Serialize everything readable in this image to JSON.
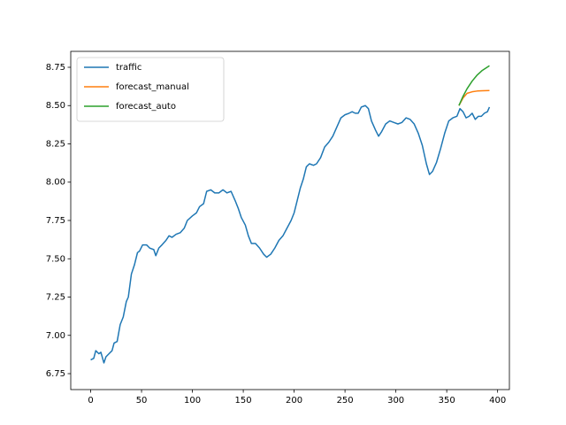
{
  "chart_data": {
    "type": "line",
    "xlim": [
      -19.6,
      411.6
    ],
    "ylim": [
      6.646,
      8.854
    ],
    "xticks": [
      0,
      50,
      100,
      150,
      200,
      250,
      300,
      350,
      400
    ],
    "yticks": [
      6.75,
      {
        "value": 7.0,
        "label": "7.00"
      },
      7.25,
      {
        "value": 7.5,
        "label": "7.50"
      },
      7.75,
      {
        "value": 8.0,
        "label": "8.00"
      },
      8.25,
      {
        "value": 8.5,
        "label": "8.50"
      },
      8.75
    ],
    "legend": "upper-left",
    "series": [
      {
        "name": "traffic",
        "color": "#1f77b4",
        "x": [
          0,
          3,
          5,
          8,
          10,
          13,
          15,
          18,
          21,
          23,
          26,
          29,
          32,
          35,
          37,
          40,
          43,
          46,
          48,
          51,
          55,
          58,
          62,
          64,
          67,
          70,
          74,
          77,
          80,
          84,
          88,
          92,
          95,
          100,
          104,
          107,
          111,
          114,
          118,
          122,
          126,
          130,
          134,
          138,
          142,
          145,
          148,
          152,
          155,
          158,
          162,
          166,
          170,
          173,
          177,
          181,
          185,
          189,
          193,
          197,
          200,
          203,
          206,
          209,
          212,
          215,
          219,
          222,
          226,
          230,
          234,
          238,
          242,
          246,
          250,
          254,
          257,
          260,
          263,
          266,
          270,
          273,
          276,
          280,
          283,
          286,
          290,
          294,
          298,
          302,
          306,
          310,
          314,
          318,
          322,
          326,
          330,
          333,
          336,
          340,
          344,
          348,
          352,
          356,
          360,
          363,
          366,
          369,
          372,
          375,
          378,
          381,
          384,
          387,
          390,
          392
        ],
        "values": [
          6.84,
          6.85,
          6.9,
          6.88,
          6.89,
          6.82,
          6.86,
          6.88,
          6.9,
          6.95,
          6.96,
          7.07,
          7.12,
          7.22,
          7.25,
          7.4,
          7.46,
          7.54,
          7.55,
          7.59,
          7.59,
          7.57,
          7.56,
          7.52,
          7.57,
          7.59,
          7.62,
          7.65,
          7.64,
          7.66,
          7.67,
          7.7,
          7.75,
          7.78,
          7.8,
          7.84,
          7.86,
          7.94,
          7.95,
          7.93,
          7.93,
          7.95,
          7.93,
          7.94,
          7.88,
          7.83,
          7.77,
          7.72,
          7.65,
          7.6,
          7.6,
          7.57,
          7.53,
          7.51,
          7.53,
          7.57,
          7.62,
          7.65,
          7.7,
          7.75,
          7.8,
          7.88,
          7.96,
          8.02,
          8.1,
          8.12,
          8.11,
          8.12,
          8.16,
          8.23,
          8.26,
          8.3,
          8.36,
          8.42,
          8.44,
          8.45,
          8.46,
          8.45,
          8.45,
          8.49,
          8.5,
          8.48,
          8.4,
          8.34,
          8.3,
          8.33,
          8.38,
          8.4,
          8.39,
          8.38,
          8.39,
          8.42,
          8.41,
          8.38,
          8.32,
          8.24,
          8.12,
          8.05,
          8.07,
          8.13,
          8.22,
          8.32,
          8.4,
          8.42,
          8.43,
          8.48,
          8.46,
          8.42,
          8.43,
          8.45,
          8.41,
          8.43,
          8.43,
          8.45,
          8.46,
          8.49
        ]
      },
      {
        "name": "forecast_manual",
        "color": "#ff7f0e",
        "x": [
          362,
          366,
          370,
          375,
          380,
          385,
          392
        ],
        "values": [
          8.5,
          8.55,
          8.58,
          8.59,
          8.595,
          8.597,
          8.598
        ]
      },
      {
        "name": "forecast_auto",
        "color": "#2ca02c",
        "x": [
          362,
          366,
          370,
          375,
          380,
          385,
          392
        ],
        "values": [
          8.5,
          8.56,
          8.61,
          8.66,
          8.7,
          8.73,
          8.76
        ]
      }
    ]
  }
}
